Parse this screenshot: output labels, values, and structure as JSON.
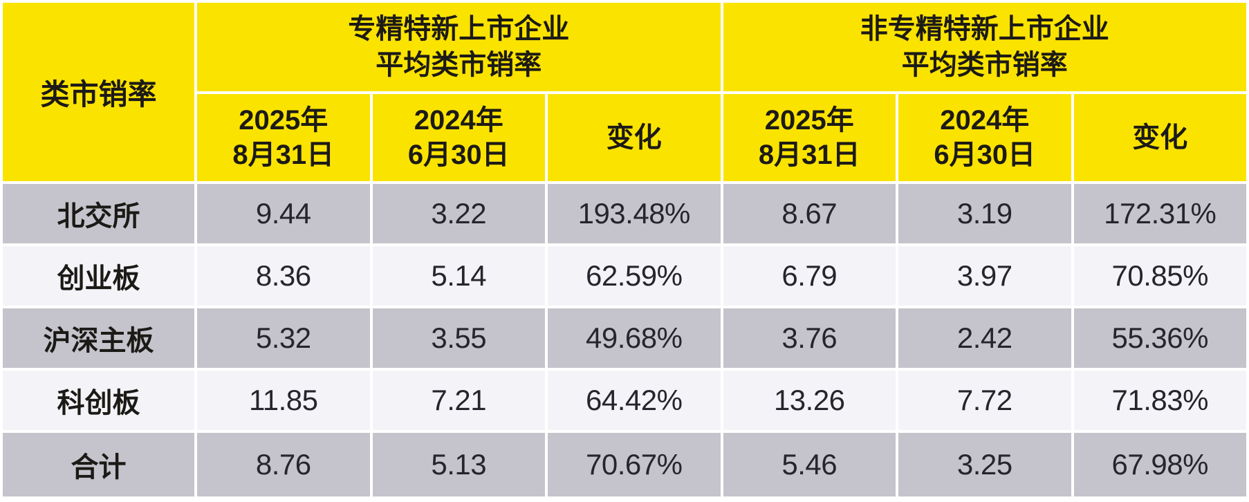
{
  "table": {
    "corner_label": "类市销率",
    "groups": [
      {
        "title": [
          "专精特新上市企业",
          "平均类市销率"
        ],
        "columns": [
          {
            "line1": "2025年",
            "line2": "8月31日"
          },
          {
            "line1": "2024年",
            "line2": "6月30日"
          },
          {
            "line1": "变化",
            "line2": ""
          }
        ]
      },
      {
        "title": [
          "非专精特新上市企业",
          "平均类市销率"
        ],
        "columns": [
          {
            "line1": "2025年",
            "line2": "8月31日"
          },
          {
            "line1": "2024年",
            "line2": "6月30日"
          },
          {
            "line1": "变化",
            "line2": ""
          }
        ]
      }
    ],
    "rows": [
      {
        "label": "北交所",
        "values": [
          "9.44",
          "3.22",
          "193.48%",
          "8.67",
          "3.19",
          "172.31%"
        ]
      },
      {
        "label": "创业板",
        "values": [
          "8.36",
          "5.14",
          "62.59%",
          "6.79",
          "3.97",
          "70.85%"
        ]
      },
      {
        "label": "沪深主板",
        "values": [
          "5.32",
          "3.55",
          "49.68%",
          "3.76",
          "2.42",
          "55.36%"
        ]
      },
      {
        "label": "科创板",
        "values": [
          "11.85",
          "7.21",
          "64.42%",
          "13.26",
          "7.72",
          "71.83%"
        ]
      },
      {
        "label": "合计",
        "values": [
          "8.76",
          "5.13",
          "70.67%",
          "5.46",
          "3.25",
          "67.98%"
        ]
      }
    ],
    "colors": {
      "header_bg": "#fbe300",
      "row_gray": "#c5c4cc",
      "row_light": "#f4f4f8",
      "gap": "#ffffff",
      "header_text": "#1c1a16",
      "number_text": "#26242c"
    }
  },
  "chart_data": {
    "type": "table",
    "title": "类市销率",
    "column_groups": [
      "专精特新上市企业 平均类市销率",
      "非专精特新上市企业 平均类市销率"
    ],
    "columns": [
      "类市销率",
      "专精特新 2025年8月31日",
      "专精特新 2024年6月30日",
      "专精特新 变化",
      "非专精特新 2025年8月31日",
      "非专精特新 2024年6月30日",
      "非专精特新 变化"
    ],
    "rows": [
      [
        "北交所",
        9.44,
        3.22,
        "193.48%",
        8.67,
        3.19,
        "172.31%"
      ],
      [
        "创业板",
        8.36,
        5.14,
        "62.59%",
        6.79,
        3.97,
        "70.85%"
      ],
      [
        "沪深主板",
        5.32,
        3.55,
        "49.68%",
        3.76,
        2.42,
        "55.36%"
      ],
      [
        "科创板",
        11.85,
        7.21,
        "64.42%",
        13.26,
        7.72,
        "71.83%"
      ],
      [
        "合计",
        8.76,
        5.13,
        "70.67%",
        5.46,
        3.25,
        "67.98%"
      ]
    ]
  }
}
